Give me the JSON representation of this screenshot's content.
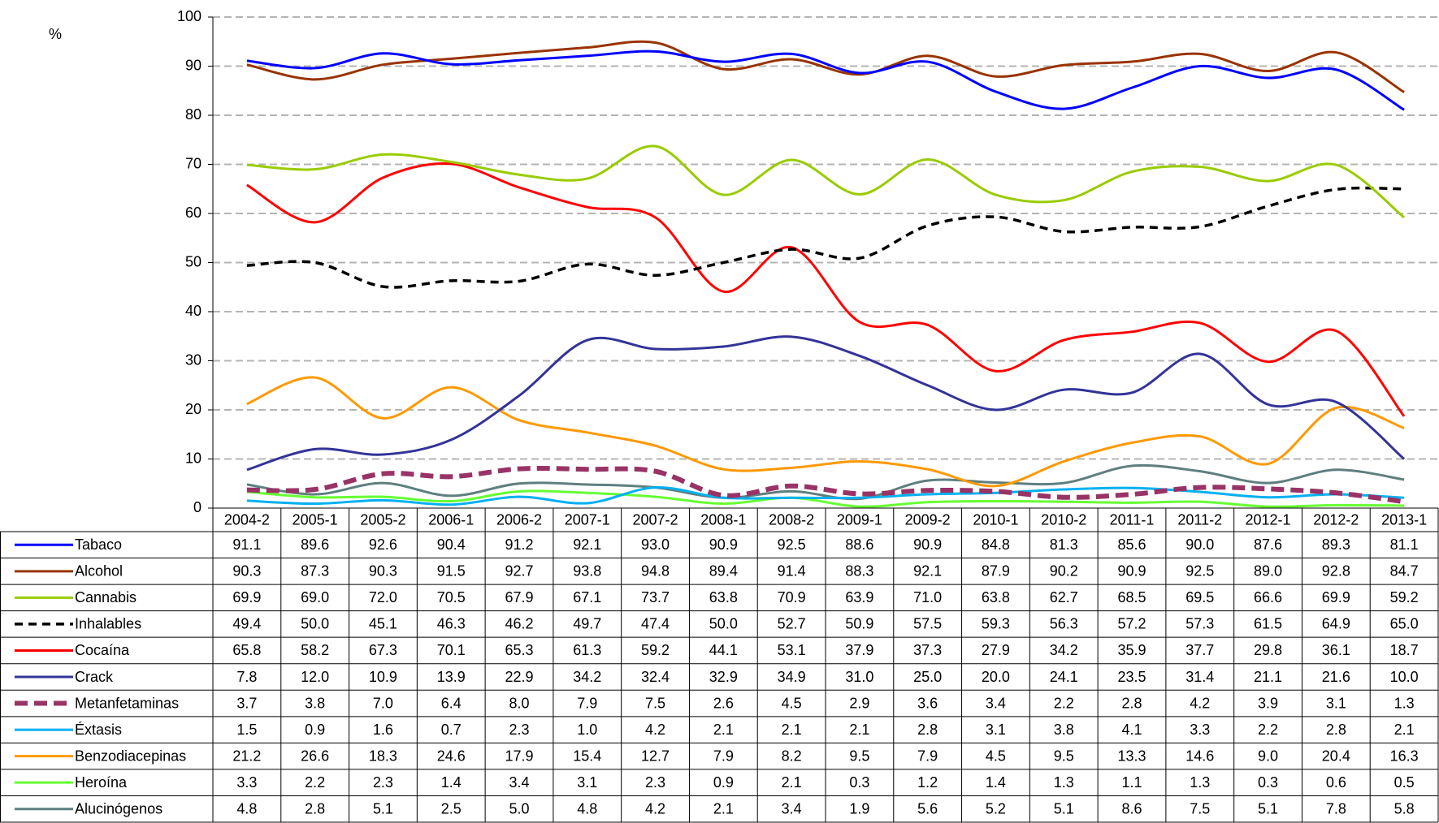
{
  "chart_data": {
    "type": "line",
    "y_label": "%",
    "categories": [
      "2004-2",
      "2005-1",
      "2005-2",
      "2006-1",
      "2006-2",
      "2007-1",
      "2007-2",
      "2008-1",
      "2008-2",
      "2009-1",
      "2009-2",
      "2010-1",
      "2010-2",
      "2011-1",
      "2011-2",
      "2012-1",
      "2012-2",
      "2013-1"
    ],
    "ylim": [
      0,
      100
    ],
    "yticks": [
      0,
      10,
      20,
      30,
      40,
      50,
      60,
      70,
      80,
      90,
      100
    ],
    "grid": true,
    "series": [
      {
        "name": "Tabaco",
        "color": "#0000ff",
        "dashed": false,
        "values": [
          91.1,
          89.6,
          92.6,
          90.4,
          91.2,
          92.1,
          93.0,
          90.9,
          92.5,
          88.6,
          90.9,
          84.8,
          81.3,
          85.6,
          90.0,
          87.6,
          89.3,
          81.1
        ],
        "value_labels": [
          "91.1",
          "89.6",
          "92.6",
          "90.4",
          "91.2",
          "92.1",
          "93.0",
          "90.9",
          "92.5",
          "88.6",
          "90.9",
          "84.8",
          "81.3",
          "85.6",
          "90.0",
          "87.6",
          "89.3",
          "81.1"
        ]
      },
      {
        "name": "Alcohol",
        "color": "#993300",
        "dashed": false,
        "values": [
          90.3,
          87.3,
          90.3,
          91.5,
          92.7,
          93.8,
          94.8,
          89.4,
          91.4,
          88.3,
          92.1,
          87.9,
          90.2,
          90.9,
          92.5,
          89.0,
          92.8,
          84.7
        ],
        "value_labels": [
          "90.3",
          "87.3",
          "90.3",
          "91.5",
          "92.7",
          "93.8",
          "94.8",
          "89.4",
          "91.4",
          "88.3",
          "92.1",
          "87.9",
          "90.2",
          "90.9",
          "92.5",
          "89.0",
          "92.8",
          "84.7"
        ]
      },
      {
        "name": "Cannabis",
        "color": "#99cc00",
        "dashed": false,
        "values": [
          69.9,
          69.0,
          72.0,
          70.5,
          67.9,
          67.1,
          73.7,
          63.8,
          70.9,
          63.9,
          71.0,
          63.8,
          62.7,
          68.5,
          69.5,
          66.6,
          69.9,
          59.2
        ],
        "value_labels": [
          "69.9",
          "69.0",
          "72.0",
          "70.5",
          "67.9",
          "67.1",
          "73.7",
          "63.8",
          "70.9",
          "63.9",
          "71.0",
          "63.8",
          "62.7",
          "68.5",
          "69.5",
          "66.6",
          "69.9",
          "59.2"
        ]
      },
      {
        "name": "Inhalables",
        "color": "#000000",
        "dashed": true,
        "values": [
          49.4,
          50.0,
          45.1,
          46.3,
          46.2,
          49.7,
          47.4,
          50.0,
          52.7,
          50.9,
          57.5,
          59.3,
          56.3,
          57.2,
          57.3,
          61.5,
          64.9,
          65.0
        ],
        "value_labels": [
          "49.4",
          "50.0",
          "45.1",
          "46.3",
          "46.2",
          "49.7",
          "47.4",
          "50.0",
          "52.7",
          "50.9",
          "57.5",
          "59.3",
          "56.3",
          "57.2",
          "57.3",
          "61.5",
          "64.9",
          "65.0"
        ]
      },
      {
        "name": "Cocaína",
        "color": "#ff0000",
        "dashed": false,
        "values": [
          65.8,
          58.2,
          67.3,
          70.1,
          65.3,
          61.3,
          59.2,
          44.1,
          53.1,
          37.9,
          37.3,
          27.9,
          34.2,
          35.9,
          37.7,
          29.8,
          36.1,
          18.7
        ],
        "value_labels": [
          "65.8",
          "58.2",
          "67.3",
          "70.1",
          "65.3",
          "61.3",
          "59.2",
          "44.1",
          "53.1",
          "37.9",
          "37.3",
          "27.9",
          "34.2",
          "35.9",
          "37.7",
          "29.8",
          "36.1",
          "18.7"
        ]
      },
      {
        "name": "Crack",
        "color": "#333399",
        "dashed": false,
        "values": [
          7.8,
          12.0,
          10.9,
          13.9,
          22.9,
          34.2,
          32.4,
          32.9,
          34.9,
          31.0,
          25.0,
          20.0,
          24.1,
          23.5,
          31.4,
          21.1,
          21.6,
          10.0
        ],
        "value_labels": [
          "7.8",
          "12.0",
          "10.9",
          "13.9",
          "22.9",
          "34.2",
          "32.4",
          "32.9",
          "34.9",
          "31.0",
          "25.0",
          "20.0",
          "24.1",
          "23.5",
          "31.4",
          "21.1",
          "21.6",
          "10.0"
        ]
      },
      {
        "name": "Metanfetaminas",
        "color": "#993366",
        "dashed": true,
        "values": [
          3.7,
          3.8,
          7.0,
          6.4,
          8.0,
          7.9,
          7.5,
          2.6,
          4.5,
          2.9,
          3.6,
          3.4,
          2.2,
          2.8,
          4.2,
          3.9,
          3.1,
          1.3
        ],
        "value_labels": [
          "3.7",
          "3.8",
          "7.0",
          "6.4",
          "8.0",
          "7.9",
          "7.5",
          "2.6",
          "4.5",
          "2.9",
          "3.6",
          "3.4",
          "2.2",
          "2.8",
          "4.2",
          "3.9",
          "3.1",
          "1.3"
        ]
      },
      {
        "name": "Éxtasis",
        "color": "#00b0f0",
        "dashed": false,
        "values": [
          1.5,
          0.9,
          1.6,
          0.7,
          2.3,
          1.0,
          4.2,
          2.1,
          2.1,
          2.1,
          2.8,
          3.1,
          3.8,
          4.1,
          3.3,
          2.2,
          2.8,
          2.1
        ],
        "value_labels": [
          "1.5",
          "0.9",
          "1.6",
          "0.7",
          "2.3",
          "1.0",
          "4.2",
          "2.1",
          "2.1",
          "2.1",
          "2.8",
          "3.1",
          "3.8",
          "4.1",
          "3.3",
          "2.2",
          "2.8",
          "2.1"
        ]
      },
      {
        "name": "Benzodiacepinas",
        "color": "#ff9900",
        "dashed": false,
        "values": [
          21.2,
          26.6,
          18.3,
          24.6,
          17.9,
          15.4,
          12.7,
          7.9,
          8.2,
          9.5,
          7.9,
          4.5,
          9.5,
          13.3,
          14.6,
          9.0,
          20.4,
          16.3
        ],
        "value_labels": [
          "21.2",
          "26.6",
          "18.3",
          "24.6",
          "17.9",
          "15.4",
          "12.7",
          "7.9",
          "8.2",
          "9.5",
          "7.9",
          "4.5",
          "9.5",
          "13.3",
          "14.6",
          "9.0",
          "20.4",
          "16.3"
        ]
      },
      {
        "name": "Heroína",
        "color": "#66ff33",
        "dashed": false,
        "values": [
          3.3,
          2.2,
          2.3,
          1.4,
          3.4,
          3.1,
          2.3,
          0.9,
          2.1,
          0.3,
          1.2,
          1.4,
          1.3,
          1.1,
          1.3,
          0.3,
          0.6,
          0.5
        ],
        "value_labels": [
          "3.3",
          "2.2",
          "2.3",
          "1.4",
          "3.4",
          "3.1",
          "2.3",
          "0.9",
          "2.1",
          "0.3",
          "1.2",
          "1.4",
          "1.3",
          "1.1",
          "1.3",
          "0.3",
          "0.6",
          "0.5"
        ]
      },
      {
        "name": "Alucinógenos",
        "color": "#5f7f7f",
        "dashed": false,
        "values": [
          4.8,
          2.8,
          5.1,
          2.5,
          5.0,
          4.8,
          4.2,
          2.1,
          3.4,
          1.9,
          5.6,
          5.2,
          5.1,
          8.6,
          7.5,
          5.1,
          7.8,
          5.8
        ],
        "value_labels": [
          "4.8",
          "2.8",
          "5.1",
          "2.5",
          "5.0",
          "4.8",
          "4.2",
          "2.1",
          "3.4",
          "1.9",
          "5.6",
          "5.2",
          "5.1",
          "8.6",
          "7.5",
          "5.1",
          "7.8",
          "5.8"
        ]
      }
    ]
  }
}
